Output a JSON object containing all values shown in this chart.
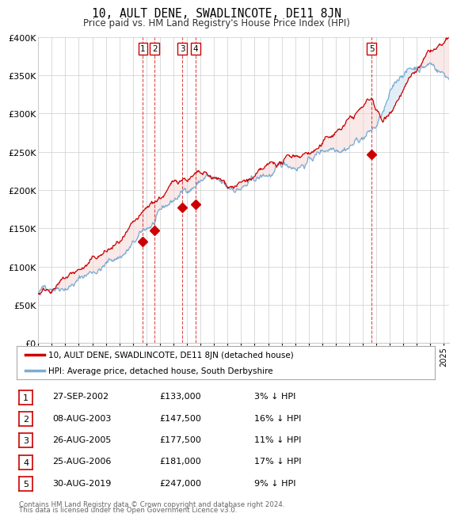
{
  "title": "10, AULT DENE, SWADLINCOTE, DE11 8JN",
  "subtitle": "Price paid vs. HM Land Registry's House Price Index (HPI)",
  "legend_label_red": "10, AULT DENE, SWADLINCOTE, DE11 8JN (detached house)",
  "legend_label_blue": "HPI: Average price, detached house, South Derbyshire",
  "footer1": "Contains HM Land Registry data © Crown copyright and database right 2024.",
  "footer2": "This data is licensed under the Open Government Licence v3.0.",
  "ylim": [
    0,
    400000
  ],
  "yticks": [
    0,
    50000,
    100000,
    150000,
    200000,
    250000,
    300000,
    350000,
    400000
  ],
  "ytick_labels": [
    "£0",
    "£50K",
    "£100K",
    "£150K",
    "£200K",
    "£250K",
    "£300K",
    "£350K",
    "£400K"
  ],
  "transactions": [
    {
      "num": 1,
      "date": "27-SEP-2002",
      "date_num": 2002.74,
      "price": 133000,
      "pct": "3%",
      "dir": "↓"
    },
    {
      "num": 2,
      "date": "08-AUG-2003",
      "date_num": 2003.6,
      "price": 147500,
      "pct": "16%",
      "dir": "↓"
    },
    {
      "num": 3,
      "date": "26-AUG-2005",
      "date_num": 2005.65,
      "price": 177500,
      "pct": "11%",
      "dir": "↓"
    },
    {
      "num": 4,
      "date": "25-AUG-2006",
      "date_num": 2006.65,
      "price": 181000,
      "pct": "17%",
      "dir": "↓"
    },
    {
      "num": 5,
      "date": "30-AUG-2019",
      "date_num": 2019.66,
      "price": 247000,
      "pct": "9%",
      "dir": "↓"
    }
  ],
  "color_red": "#cc0000",
  "color_blue": "#7aadd4",
  "color_fill": "#d6e8f5",
  "bg_color": "#ffffff",
  "grid_color": "#cccccc",
  "xmin": 1995.0,
  "xmax": 2025.4
}
